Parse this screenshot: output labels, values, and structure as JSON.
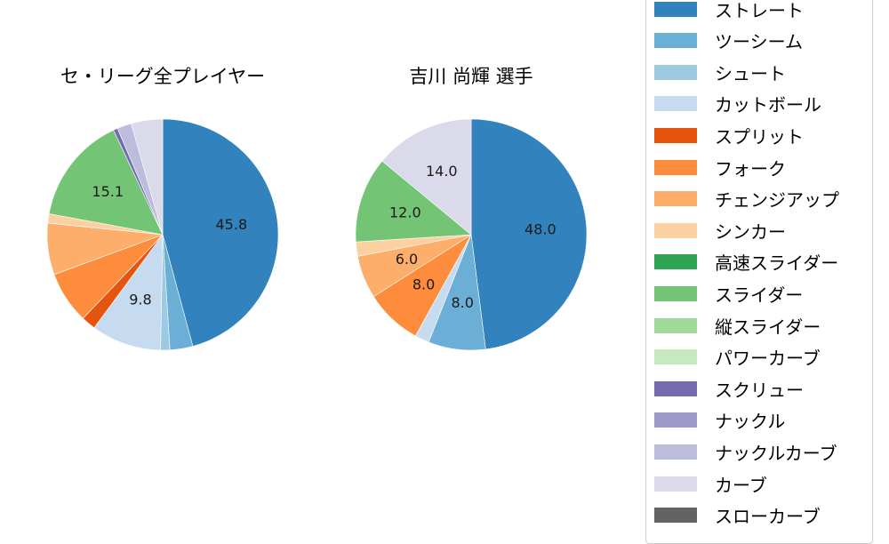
{
  "chart_data": [
    {
      "type": "pie",
      "title": "セ・リーグ全プレイヤー",
      "start_angle": 90,
      "direction": "clockwise",
      "categories": [
        "ストレート",
        "ツーシーム",
        "シュート",
        "カットボール",
        "スプリット",
        "フォーク",
        "チェンジアップ",
        "シンカー",
        "スライダー",
        "スクリュー",
        "ナックルカーブ",
        "カーブ"
      ],
      "values": [
        45.8,
        3.2,
        1.3,
        9.8,
        2.0,
        7.3,
        7.2,
        1.3,
        15.1,
        0.6,
        2.0,
        4.4
      ],
      "labels_shown": {
        "ストレート": "45.8",
        "カットボール": "9.8",
        "スライダー": "15.1"
      }
    },
    {
      "type": "pie",
      "title": "吉川 尚輝  選手",
      "start_angle": 90,
      "direction": "clockwise",
      "categories": [
        "ストレート",
        "ツーシーム",
        "カットボール",
        "フォーク",
        "チェンジアップ",
        "シンカー",
        "スライダー",
        "カーブ"
      ],
      "values": [
        48.0,
        8.0,
        2.0,
        8.0,
        6.0,
        2.0,
        12.0,
        14.0
      ],
      "labels_shown": {
        "ストレート": "48.0",
        "ツーシーム": "8.0",
        "フォーク": "8.0",
        "チェンジアップ": "6.0",
        "スライダー": "12.0",
        "カーブ": "14.0"
      }
    }
  ],
  "titles": {
    "left": "セ・リーグ全プレイヤー",
    "right": "吉川 尚輝  選手"
  },
  "colors": {
    "ストレート": "#3182bd",
    "ツーシーム": "#6baed6",
    "シュート": "#9ecae1",
    "カットボール": "#c6dbef",
    "スプリット": "#e6550d",
    "フォーク": "#fd8d3c",
    "チェンジアップ": "#fdae6b",
    "シンカー": "#fdd0a2",
    "高速スライダー": "#31a354",
    "スライダー": "#74c476",
    "縦スライダー": "#a1d99b",
    "パワーカーブ": "#c7e9c0",
    "スクリュー": "#756bb1",
    "ナックル": "#9e9ac8",
    "ナックルカーブ": "#bcbddc",
    "カーブ": "#dadaeb",
    "スローカーブ": "#636363"
  },
  "legend": {
    "items": [
      {
        "label": "ストレート",
        "color": "#3182bd"
      },
      {
        "label": "ツーシーム",
        "color": "#6baed6"
      },
      {
        "label": "シュート",
        "color": "#9ecae1"
      },
      {
        "label": "カットボール",
        "color": "#c6dbef"
      },
      {
        "label": "スプリット",
        "color": "#e6550d"
      },
      {
        "label": "フォーク",
        "color": "#fd8d3c"
      },
      {
        "label": "チェンジアップ",
        "color": "#fdae6b"
      },
      {
        "label": "シンカー",
        "color": "#fdd0a2"
      },
      {
        "label": "高速スライダー",
        "color": "#31a354"
      },
      {
        "label": "スライダー",
        "color": "#74c476"
      },
      {
        "label": "縦スライダー",
        "color": "#a1d99b"
      },
      {
        "label": "パワーカーブ",
        "color": "#c7e9c0"
      },
      {
        "label": "スクリュー",
        "color": "#756bb1"
      },
      {
        "label": "ナックル",
        "color": "#9e9ac8"
      },
      {
        "label": "ナックルカーブ",
        "color": "#bcbddc"
      },
      {
        "label": "カーブ",
        "color": "#dadaeb"
      },
      {
        "label": "スローカーブ",
        "color": "#636363"
      }
    ]
  }
}
